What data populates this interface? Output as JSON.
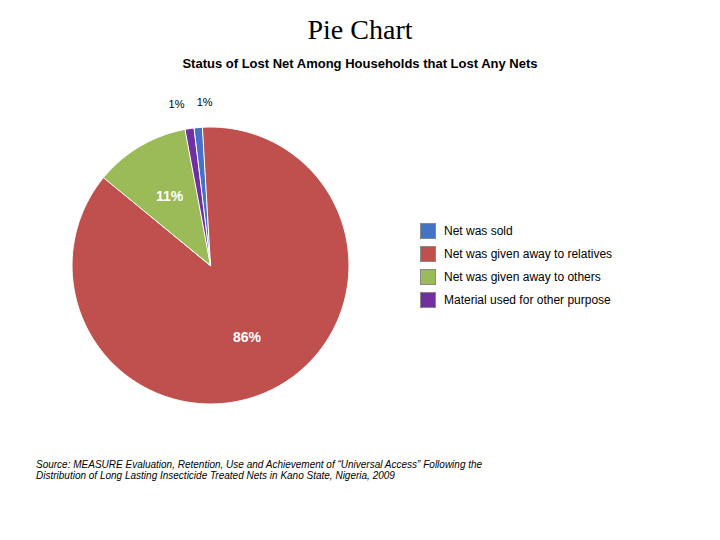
{
  "chart_data": {
    "type": "pie",
    "title": "Pie Chart",
    "subtitle": "Status of Lost Net Among Households that Lost Any Nets",
    "categories": [
      "Net was sold",
      "Net was given away to relatives",
      "Net was given away to others",
      "Material used for other purpose"
    ],
    "values": [
      1,
      86,
      11,
      1
    ],
    "value_labels": [
      "1%",
      "86%",
      "11%",
      "1%"
    ],
    "colors": [
      "#4472C4",
      "#C0504D",
      "#9BBB59",
      "#7030A0"
    ],
    "data_labels": true,
    "legend": "right",
    "caption": "Source: MEASURE Evaluation, Retention, Use and Achievement of “Universal Access” Following the\nDistribution of Long Lasting Insecticide Treated Nets in Kano State, Nigeria, 2009"
  }
}
